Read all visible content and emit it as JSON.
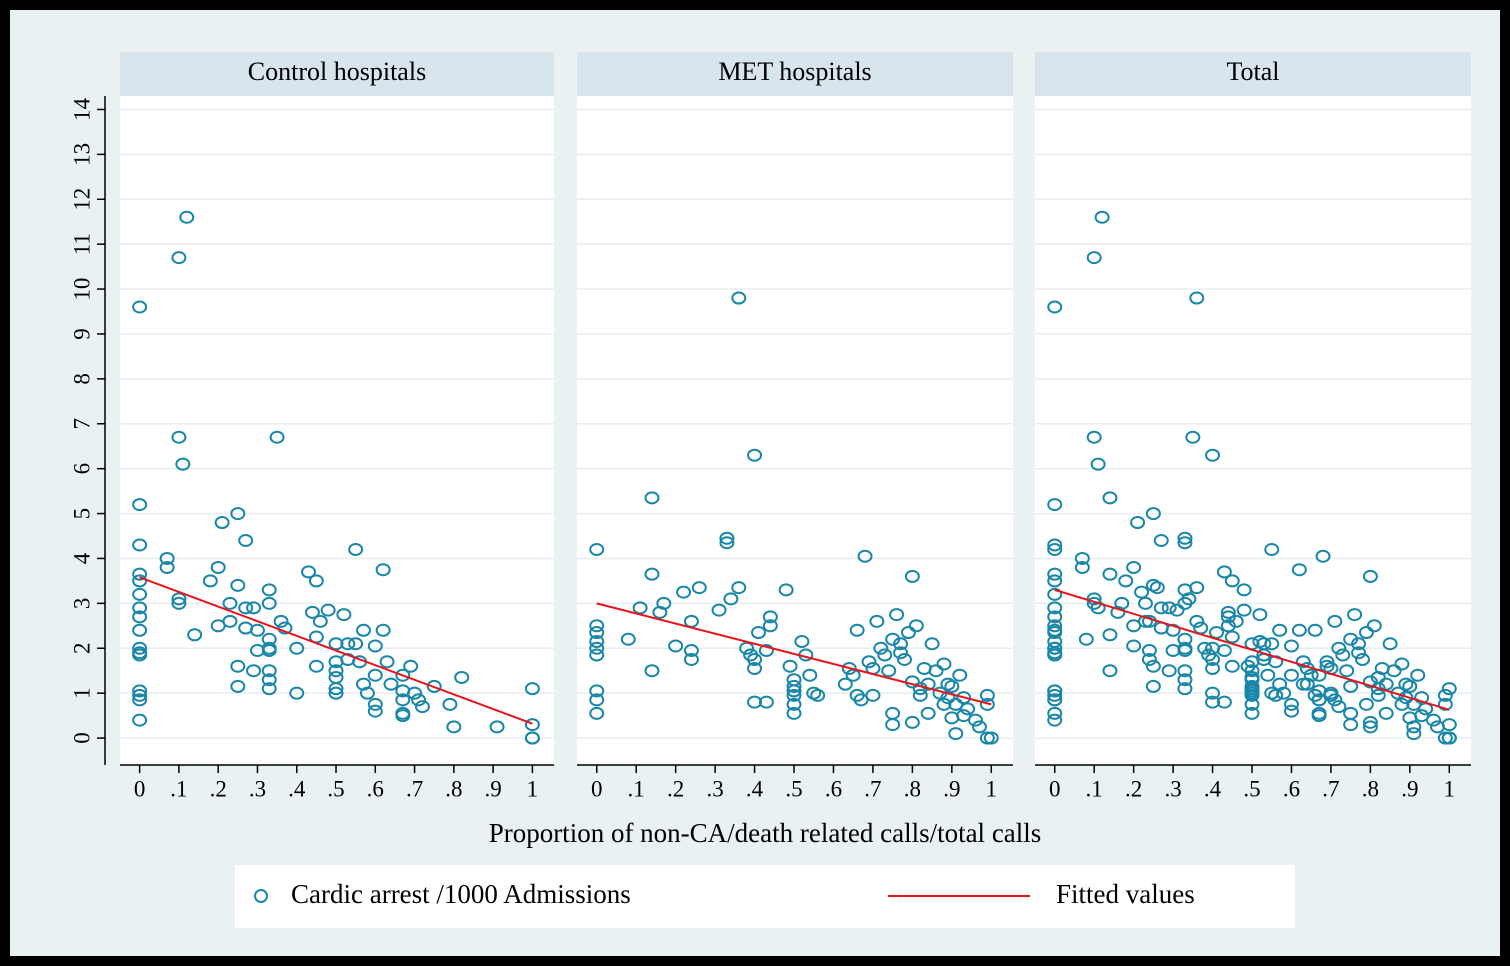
{
  "chart_data": [
    {
      "type": "scatter",
      "title": "Control hospitals",
      "ylim": [
        -0.6,
        14.3
      ],
      "yticks": [
        0,
        1,
        2,
        3,
        4,
        5,
        6,
        7,
        8,
        9,
        10,
        11,
        12,
        13,
        14
      ],
      "grid": true,
      "xlim": [
        -0.05,
        1.055
      ],
      "xticks": [
        0,
        {
          "value": 0.1,
          "label": ".1"
        },
        {
          "value": 0.2,
          "label": ".2"
        },
        {
          "value": 0.3,
          "label": ".3"
        },
        {
          "value": 0.4,
          "label": ".4"
        },
        {
          "value": 0.5,
          "label": ".5"
        },
        {
          "value": 0.6,
          "label": ".6"
        },
        {
          "value": 0.7,
          "label": ".7"
        },
        {
          "value": 0.8,
          "label": ".8"
        },
        {
          "value": 0.9,
          "label": ".9"
        },
        1
      ],
      "series": [
        {
          "name": "Cardic arrest /1000 Admissions",
          "color": "#1a87a8",
          "x": [
            0,
            0,
            0,
            0,
            0,
            0,
            0,
            0,
            0,
            0,
            0,
            0,
            0,
            0,
            0,
            0,
            0.07,
            0.07,
            0.1,
            0.1,
            0.1,
            0.12,
            0.1,
            0.11,
            0.14,
            0.18,
            0.2,
            0.21,
            0.2,
            0.23,
            0.23,
            0.25,
            0.25,
            0.25,
            0.25,
            0.27,
            0.27,
            0.27,
            0.29,
            0.29,
            0.3,
            0.3,
            0.33,
            0.33,
            0.33,
            0.33,
            0.33,
            0.33,
            0.33,
            0.33,
            0.35,
            0.36,
            0.37,
            0.4,
            0.4,
            0.43,
            0.44,
            0.45,
            0.45,
            0.45,
            0.46,
            0.48,
            0.5,
            0.5,
            0.5,
            0.5,
            0.5,
            0.5,
            0.52,
            0.53,
            0.53,
            0.55,
            0.55,
            0.56,
            0.57,
            0.57,
            0.58,
            0.6,
            0.6,
            0.6,
            0.6,
            0.62,
            0.62,
            0.63,
            0.64,
            0.67,
            0.67,
            0.67,
            0.67,
            0.67,
            0.69,
            0.7,
            0.71,
            0.72,
            0.75,
            0.79,
            0.8,
            0.82,
            0.91,
            1,
            1,
            1,
            1
          ],
          "values": [
            9.6,
            5.2,
            4.3,
            3.65,
            3.5,
            3.2,
            2.9,
            2.7,
            2.4,
            2.0,
            1.9,
            1.85,
            1.05,
            0.95,
            0.85,
            0.4,
            4.0,
            3.8,
            3.1,
            3.0,
            10.7,
            11.6,
            6.7,
            6.1,
            2.3,
            3.5,
            3.8,
            4.8,
            2.5,
            2.6,
            3.0,
            5.0,
            3.4,
            1.6,
            1.15,
            4.4,
            2.9,
            2.45,
            2.9,
            1.5,
            2.4,
            1.95,
            3.3,
            3.0,
            2.2,
            2.0,
            1.95,
            1.5,
            1.3,
            1.1,
            6.7,
            2.6,
            2.45,
            2.0,
            1.0,
            3.7,
            2.8,
            3.5,
            2.25,
            1.6,
            2.6,
            2.85,
            2.1,
            1.7,
            1.5,
            1.35,
            1.1,
            1.0,
            2.75,
            2.1,
            1.75,
            4.2,
            2.1,
            1.7,
            2.4,
            1.2,
            1.0,
            2.05,
            1.4,
            0.75,
            0.6,
            3.75,
            2.4,
            1.7,
            1.2,
            1.4,
            1.05,
            0.85,
            0.55,
            0.5,
            1.6,
            1.0,
            0.85,
            0.7,
            1.15,
            0.75,
            0.25,
            1.35,
            0.25,
            1.1,
            0.3,
            0,
            0
          ]
        },
        {
          "name": "Fitted values",
          "color": "#e8141e",
          "x": [
            0,
            1
          ],
          "values": [
            3.58,
            0.32
          ]
        }
      ]
    },
    {
      "type": "scatter",
      "title": "MET hospitals",
      "xlabel": "Proportion of non-CA/death related calls/total calls",
      "xlim": [
        -0.05,
        1.055
      ],
      "xticks": [
        0,
        {
          "value": 0.1,
          "label": ".1"
        },
        {
          "value": 0.2,
          "label": ".2"
        },
        {
          "value": 0.3,
          "label": ".3"
        },
        {
          "value": 0.4,
          "label": ".4"
        },
        {
          "value": 0.5,
          "label": ".5"
        },
        {
          "value": 0.6,
          "label": ".6"
        },
        {
          "value": 0.7,
          "label": ".7"
        },
        {
          "value": 0.8,
          "label": ".8"
        },
        {
          "value": 0.9,
          "label": ".9"
        },
        1
      ],
      "series": [
        {
          "color": "#1a87a8",
          "x": [
            0,
            0,
            0,
            0,
            0,
            0,
            0,
            0,
            0,
            0.08,
            0.11,
            0.14,
            0.14,
            0.14,
            0.16,
            0.17,
            0.2,
            0.22,
            0.24,
            0.24,
            0.24,
            0.26,
            0.31,
            0.33,
            0.33,
            0.34,
            0.36,
            0.36,
            0.38,
            0.39,
            0.4,
            0.4,
            0.4,
            0.4,
            0.41,
            0.43,
            0.43,
            0.44,
            0.44,
            0.48,
            0.49,
            0.5,
            0.5,
            0.5,
            0.5,
            0.5,
            0.5,
            0.52,
            0.53,
            0.54,
            0.55,
            0.56,
            0.63,
            0.64,
            0.65,
            0.66,
            0.66,
            0.67,
            0.68,
            0.69,
            0.7,
            0.7,
            0.71,
            0.72,
            0.73,
            0.74,
            0.75,
            0.75,
            0.75,
            0.76,
            0.77,
            0.77,
            0.78,
            0.79,
            0.8,
            0.8,
            0.8,
            0.81,
            0.82,
            0.82,
            0.83,
            0.84,
            0.84,
            0.85,
            0.86,
            0.87,
            0.88,
            0.88,
            0.89,
            0.89,
            0.9,
            0.9,
            0.91,
            0.91,
            0.92,
            0.93,
            0.93,
            0.94,
            0.96,
            0.97,
            0.99,
            0.99,
            0.99,
            1
          ],
          "values": [
            4.2,
            2.5,
            2.35,
            2.15,
            2.0,
            1.85,
            1.05,
            0.85,
            0.55,
            2.2,
            2.9,
            5.35,
            3.65,
            1.5,
            2.8,
            3.0,
            2.05,
            3.25,
            2.6,
            1.95,
            1.75,
            3.35,
            2.85,
            4.45,
            4.35,
            3.1,
            9.8,
            3.35,
            2.0,
            1.85,
            6.3,
            1.75,
            1.55,
            0.8,
            2.35,
            0.8,
            1.95,
            2.7,
            2.5,
            3.3,
            1.6,
            1.3,
            1.15,
            1.05,
            0.95,
            0.75,
            0.55,
            2.15,
            1.85,
            1.4,
            1.0,
            0.95,
            1.2,
            1.55,
            1.4,
            2.4,
            0.95,
            0.85,
            4.05,
            1.7,
            1.55,
            0.95,
            2.6,
            2.0,
            1.85,
            1.5,
            0.55,
            0.3,
            2.2,
            2.75,
            2.1,
            1.9,
            1.75,
            2.35,
            3.6,
            1.25,
            0.35,
            2.5,
            1.1,
            0.95,
            1.55,
            1.2,
            0.55,
            2.1,
            1.5,
            1.0,
            1.65,
            0.75,
            1.2,
            0.9,
            1.15,
            0.45,
            0.1,
            0.75,
            1.4,
            0.9,
            0.5,
            0.65,
            0.4,
            0.25,
            0.95,
            0.75,
            0,
            0
          ]
        },
        {
          "color": "#e8141e",
          "x": [
            0,
            1
          ],
          "values": [
            3.0,
            0.75
          ]
        }
      ]
    },
    {
      "type": "scatter",
      "title": "Total",
      "xlim": [
        -0.05,
        1.055
      ],
      "xticks": [
        0,
        {
          "value": 0.1,
          "label": ".1"
        },
        {
          "value": 0.2,
          "label": ".2"
        },
        {
          "value": 0.3,
          "label": ".3"
        },
        {
          "value": 0.4,
          "label": ".4"
        },
        {
          "value": 0.5,
          "label": ".5"
        },
        {
          "value": 0.6,
          "label": ".6"
        },
        {
          "value": 0.7,
          "label": ".7"
        },
        {
          "value": 0.8,
          "label": ".8"
        },
        {
          "value": 0.9,
          "label": ".9"
        },
        1
      ],
      "series": [
        {
          "color": "#1a87a8",
          "x": [
            0,
            0,
            0,
            0,
            0,
            0,
            0,
            0,
            0,
            0,
            0,
            0,
            0,
            0,
            0,
            0,
            0.07,
            0.07,
            0.1,
            0.1,
            0.1,
            0.12,
            0.1,
            0.11,
            0.14,
            0.18,
            0.2,
            0.21,
            0.2,
            0.23,
            0.23,
            0.25,
            0.25,
            0.25,
            0.25,
            0.27,
            0.27,
            0.27,
            0.29,
            0.29,
            0.3,
            0.3,
            0.33,
            0.33,
            0.33,
            0.33,
            0.33,
            0.33,
            0.33,
            0.33,
            0.35,
            0.36,
            0.37,
            0.4,
            0.4,
            0.43,
            0.44,
            0.45,
            0.45,
            0.45,
            0.46,
            0.48,
            0.5,
            0.5,
            0.5,
            0.5,
            0.5,
            0.5,
            0.52,
            0.53,
            0.53,
            0.55,
            0.55,
            0.56,
            0.57,
            0.57,
            0.58,
            0.6,
            0.6,
            0.6,
            0.6,
            0.62,
            0.62,
            0.63,
            0.64,
            0.67,
            0.67,
            0.67,
            0.67,
            0.67,
            0.69,
            0.7,
            0.71,
            0.72,
            0.75,
            0.79,
            0.8,
            0.82,
            0.91,
            1,
            1,
            1,
            1,
            0,
            0,
            0,
            0,
            0,
            0,
            0,
            0,
            0,
            0.08,
            0.11,
            0.14,
            0.14,
            0.14,
            0.16,
            0.17,
            0.2,
            0.22,
            0.24,
            0.24,
            0.24,
            0.26,
            0.31,
            0.33,
            0.33,
            0.34,
            0.36,
            0.36,
            0.38,
            0.39,
            0.4,
            0.4,
            0.4,
            0.4,
            0.41,
            0.43,
            0.43,
            0.44,
            0.44,
            0.48,
            0.49,
            0.5,
            0.5,
            0.5,
            0.5,
            0.5,
            0.5,
            0.52,
            0.53,
            0.54,
            0.55,
            0.56,
            0.63,
            0.64,
            0.65,
            0.66,
            0.66,
            0.67,
            0.68,
            0.69,
            0.7,
            0.7,
            0.71,
            0.72,
            0.73,
            0.74,
            0.75,
            0.75,
            0.75,
            0.76,
            0.77,
            0.77,
            0.78,
            0.79,
            0.8,
            0.8,
            0.8,
            0.81,
            0.82,
            0.82,
            0.83,
            0.84,
            0.84,
            0.85,
            0.86,
            0.87,
            0.88,
            0.88,
            0.89,
            0.89,
            0.9,
            0.9,
            0.91,
            0.91,
            0.92,
            0.93,
            0.93,
            0.94,
            0.96,
            0.97,
            0.99,
            0.99,
            0.99,
            1
          ],
          "values": [
            9.6,
            5.2,
            4.3,
            3.65,
            3.5,
            3.2,
            2.9,
            2.7,
            2.4,
            2.0,
            1.9,
            1.85,
            1.05,
            0.95,
            0.85,
            0.4,
            4.0,
            3.8,
            3.1,
            3.0,
            10.7,
            11.6,
            6.7,
            6.1,
            2.3,
            3.5,
            3.8,
            4.8,
            2.5,
            2.6,
            3.0,
            5.0,
            3.4,
            1.6,
            1.15,
            4.4,
            2.9,
            2.45,
            2.9,
            1.5,
            2.4,
            1.95,
            3.3,
            3.0,
            2.2,
            2.0,
            1.95,
            1.5,
            1.3,
            1.1,
            6.7,
            2.6,
            2.45,
            2.0,
            1.0,
            3.7,
            2.8,
            3.5,
            2.25,
            1.6,
            2.6,
            2.85,
            2.1,
            1.7,
            1.5,
            1.35,
            1.1,
            1.0,
            2.75,
            2.1,
            1.75,
            4.2,
            2.1,
            1.7,
            2.4,
            1.2,
            1.0,
            2.05,
            1.4,
            0.75,
            0.6,
            3.75,
            2.4,
            1.7,
            1.2,
            1.4,
            1.05,
            0.85,
            0.55,
            0.5,
            1.6,
            1.0,
            0.85,
            0.7,
            1.15,
            0.75,
            0.25,
            1.35,
            0.25,
            1.1,
            0.3,
            0,
            0,
            4.2,
            2.5,
            2.35,
            2.15,
            2.0,
            1.85,
            1.05,
            0.85,
            0.55,
            2.2,
            2.9,
            5.35,
            3.65,
            1.5,
            2.8,
            3.0,
            2.05,
            3.25,
            2.6,
            1.95,
            1.75,
            3.35,
            2.85,
            4.45,
            4.35,
            3.1,
            9.8,
            3.35,
            2.0,
            1.85,
            6.3,
            1.75,
            1.55,
            0.8,
            2.35,
            0.8,
            1.95,
            2.7,
            2.5,
            3.3,
            1.6,
            1.3,
            1.15,
            1.05,
            0.95,
            0.75,
            0.55,
            2.15,
            1.85,
            1.4,
            1.0,
            0.95,
            1.2,
            1.55,
            1.4,
            2.4,
            0.95,
            0.85,
            4.05,
            1.7,
            1.55,
            0.95,
            2.6,
            2.0,
            1.85,
            1.5,
            0.55,
            0.3,
            2.2,
            2.75,
            2.1,
            1.9,
            1.75,
            2.35,
            3.6,
            1.25,
            0.35,
            2.5,
            1.1,
            0.95,
            1.55,
            1.2,
            0.55,
            2.1,
            1.5,
            1.0,
            1.65,
            0.75,
            1.2,
            0.9,
            1.15,
            0.45,
            0.1,
            0.75,
            1.4,
            0.9,
            0.5,
            0.65,
            0.4,
            0.25,
            0.95,
            0.75,
            0,
            0
          ]
        },
        {
          "color": "#e8141e",
          "x": [
            0,
            1
          ],
          "values": [
            3.3,
            0.63
          ]
        }
      ]
    }
  ]
}
